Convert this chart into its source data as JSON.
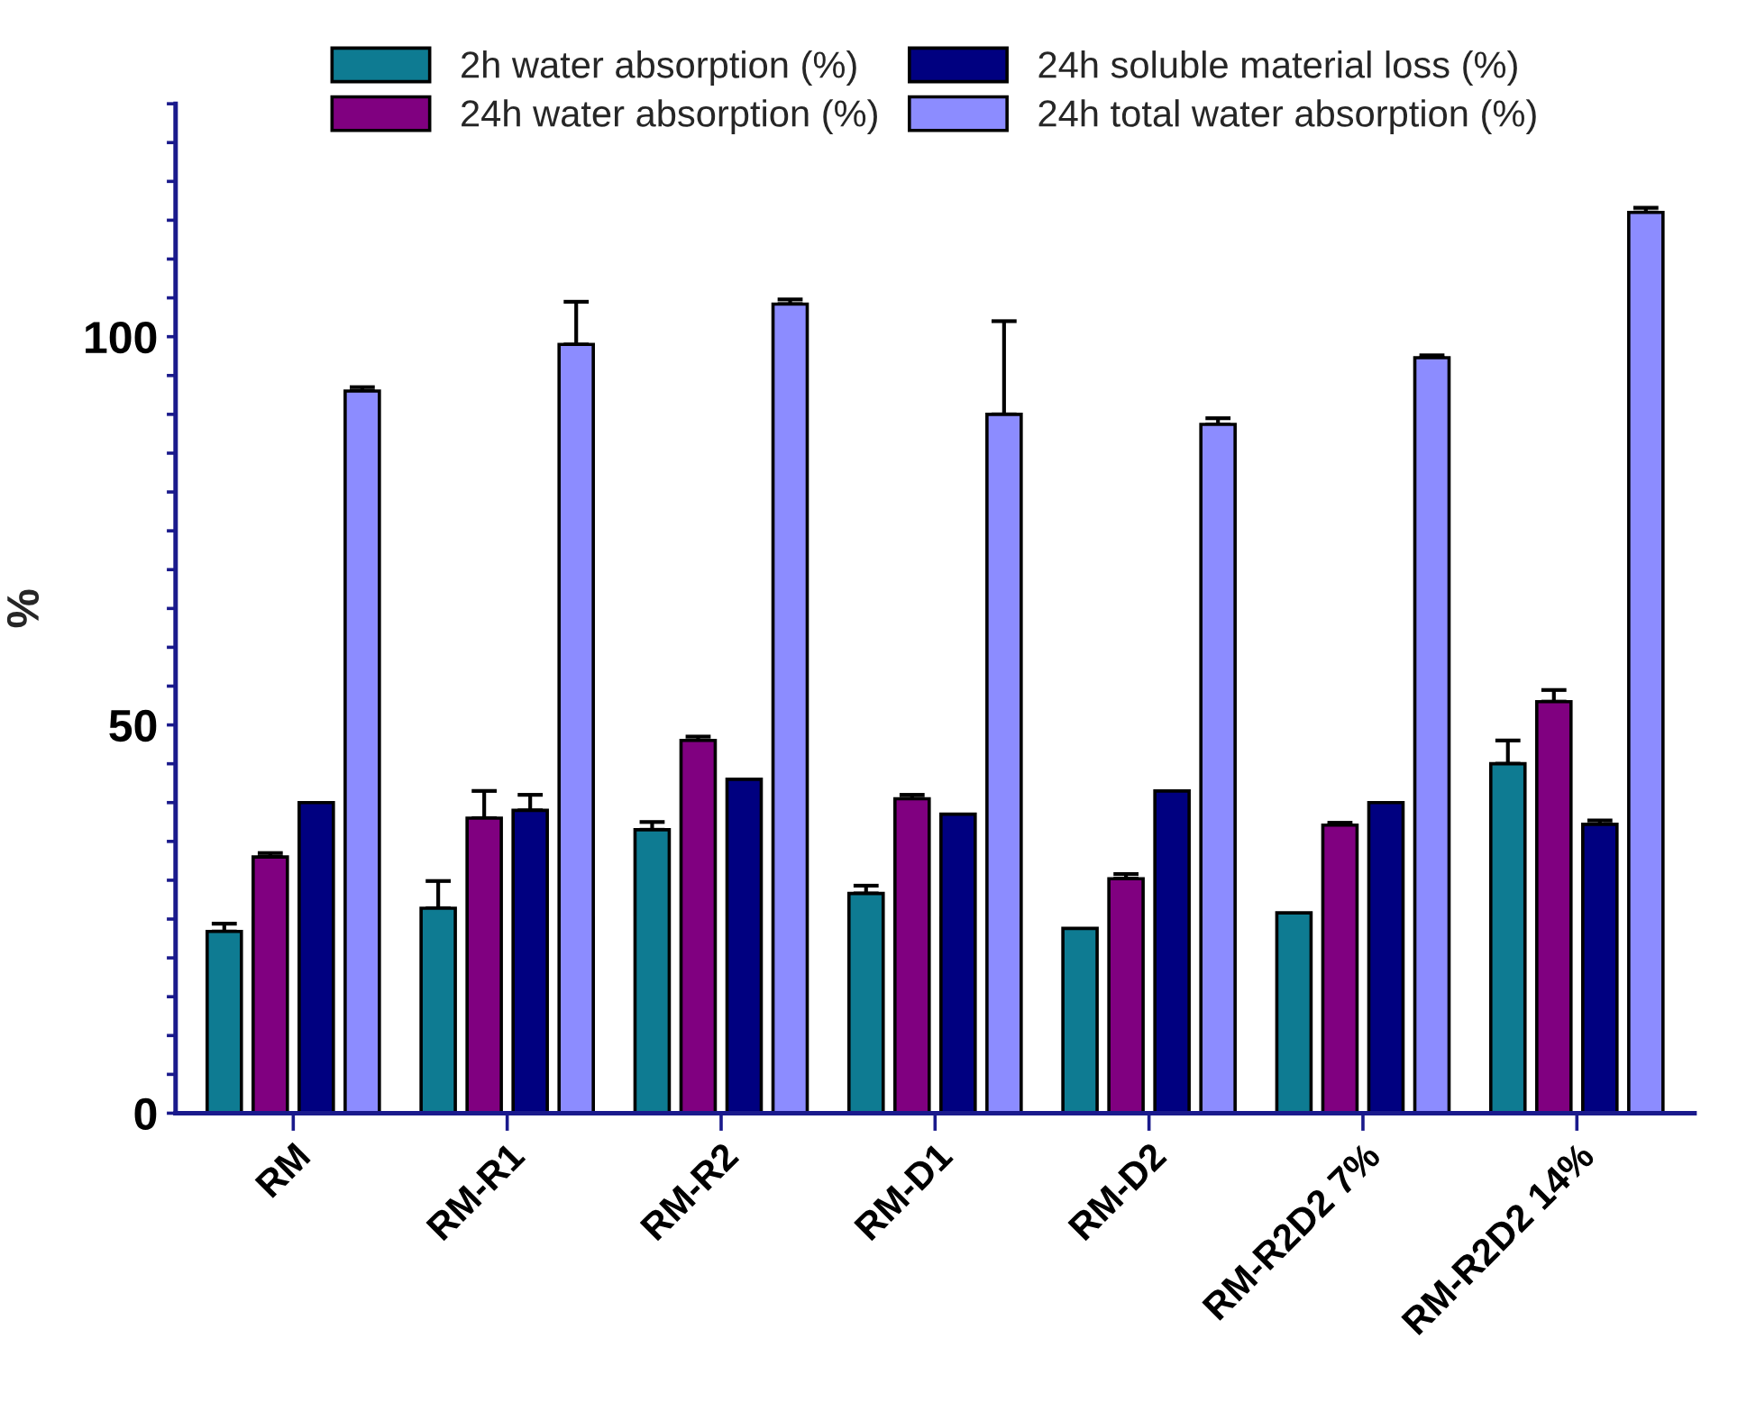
{
  "chart_data": {
    "type": "bar",
    "ylabel": "%",
    "categories": [
      "RM",
      "RM-R1",
      "RM-R2",
      "RM-D1",
      "RM-D2",
      "RM-R2D2 7%",
      "RM-R2D2 14%"
    ],
    "series": [
      {
        "name": "2h water absorption (%)",
        "color": "#0e7b92",
        "values": [
          23.4,
          26.4,
          36.5,
          28.3,
          23.8,
          25.8,
          45
        ],
        "errors": [
          1,
          3.5,
          1,
          1,
          null,
          null,
          3
        ]
      },
      {
        "name": "24h water absorption (%)",
        "color": "#800080",
        "values": [
          33,
          38,
          48,
          40.5,
          30.2,
          37.1,
          53
        ],
        "errors": [
          0.5,
          3.5,
          0.5,
          0.5,
          0.6,
          0.3,
          1.5
        ]
      },
      {
        "name": "24h soluble material loss (%)",
        "color": "#000080",
        "values": [
          40,
          39,
          43,
          38.5,
          41.5,
          40,
          37.2
        ],
        "errors": [
          null,
          2,
          null,
          null,
          null,
          null,
          0.5
        ]
      },
      {
        "name": "24h total water absorption (%)",
        "color": "#8c8cff",
        "values": [
          93,
          99,
          104.2,
          90,
          88.7,
          97.3,
          116
        ],
        "errors": [
          0.5,
          5.5,
          0.6,
          12,
          0.8,
          0.3,
          0.6
        ]
      }
    ],
    "ylim": [
      0,
      130
    ],
    "yticks": [
      0,
      {
        "value": 5,
        "label": null
      },
      {
        "value": 10,
        "label": null
      },
      {
        "value": 15,
        "label": null
      },
      {
        "value": 20,
        "label": null
      },
      {
        "value": 25,
        "label": null
      },
      {
        "value": 30,
        "label": null
      },
      {
        "value": 35,
        "label": null
      },
      {
        "value": 40,
        "label": null
      },
      {
        "value": 45,
        "label": null
      },
      50,
      {
        "value": 55,
        "label": null
      },
      {
        "value": 60,
        "label": null
      },
      {
        "value": 65,
        "label": null
      },
      {
        "value": 70,
        "label": null
      },
      {
        "value": 75,
        "label": null
      },
      {
        "value": 80,
        "label": null
      },
      {
        "value": 85,
        "label": null
      },
      {
        "value": 90,
        "label": null
      },
      {
        "value": 95,
        "label": null
      },
      100,
      {
        "value": 105,
        "label": null
      },
      {
        "value": 110,
        "label": null
      },
      {
        "value": 115,
        "label": null
      },
      {
        "value": 120,
        "label": null
      },
      {
        "value": 125,
        "label": null
      },
      {
        "value": 130,
        "label": null
      }
    ],
    "grid": false,
    "legend": "top"
  }
}
